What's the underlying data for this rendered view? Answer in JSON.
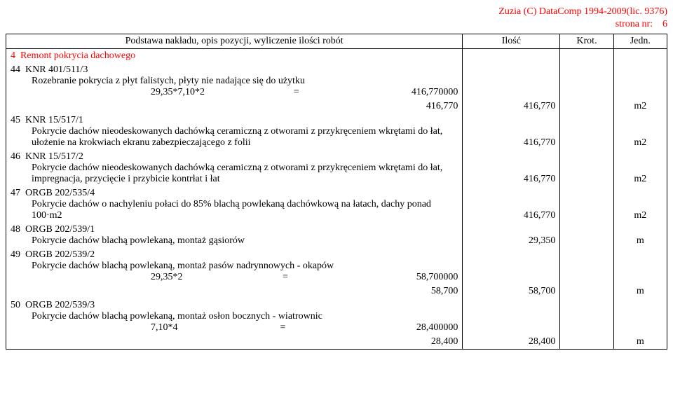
{
  "header": {
    "copyright": "Zuzia (C) DataComp 1994-2009(lic. 9376)",
    "page_label": "strona nr:",
    "page_number": "6"
  },
  "table": {
    "columns": {
      "desc": "Podstawa nakładu, opis pozycji, wyliczenie ilości robót",
      "qty": "Ilość",
      "krot": "Krot.",
      "jedn": "Jedn."
    },
    "section": {
      "num": "4",
      "title": "Remont pokrycia dachowego"
    },
    "rows": [
      {
        "num": "44",
        "code": "KNR 401/511/3",
        "desc": "Rozebranie pokrycia z płyt falistych, płyty nie nadające się do użytku",
        "calc_lhs": "29,35*7,10*2",
        "calc_eq": "=",
        "calc_rhs": "416,770000",
        "sum_qty": "416,770",
        "qty": "416,770",
        "jedn": "m2"
      },
      {
        "num": "45",
        "code": "KNR 15/517/1",
        "desc": "Pokrycie dachów nieodeskowanych dachówką ceramiczną z otworami z przykręceniem wkrętami do łat, ułożenie na krokwiach ekranu zabezpieczającego z folii",
        "qty": "416,770",
        "jedn": "m2"
      },
      {
        "num": "46",
        "code": "KNR 15/517/2",
        "desc": "Pokrycie dachów nieodeskowanych dachówką ceramiczną z otworami z przykręceniem wkrętami do łat, impregnacja, przycięcie i przybicie kontrłat i łat",
        "qty": "416,770",
        "jedn": "m2"
      },
      {
        "num": "47",
        "code": "ORGB 202/535/4",
        "desc": "Pokrycie dachów o nachyleniu połaci do 85% blachą powlekaną dachówkową na łatach, dachy ponad 100·m2",
        "qty": "416,770",
        "jedn": "m2"
      },
      {
        "num": "48",
        "code": "ORGB 202/539/1",
        "desc": "Pokrycie dachów blachą powlekaną, montaż gąsiorów",
        "qty": "29,350",
        "jedn": "m"
      },
      {
        "num": "49",
        "code": "ORGB 202/539/2",
        "desc": "Pokrycie dachów blachą powlekaną, montaż pasów nadrynnowych - okapów",
        "calc_lhs": "29,35*2",
        "calc_eq": "=",
        "calc_rhs": "58,700000",
        "sum_qty": "58,700",
        "qty": "58,700",
        "jedn": "m"
      },
      {
        "num": "50",
        "code": "ORGB 202/539/3",
        "desc": "Pokrycie dachów blachą powlekaną, montaż osłon bocznych - wiatrownic",
        "calc_lhs": "7,10*4",
        "calc_eq": "=",
        "calc_rhs": "28,400000",
        "sum_qty": "28,400",
        "qty": "28,400",
        "jedn": "m"
      }
    ]
  }
}
